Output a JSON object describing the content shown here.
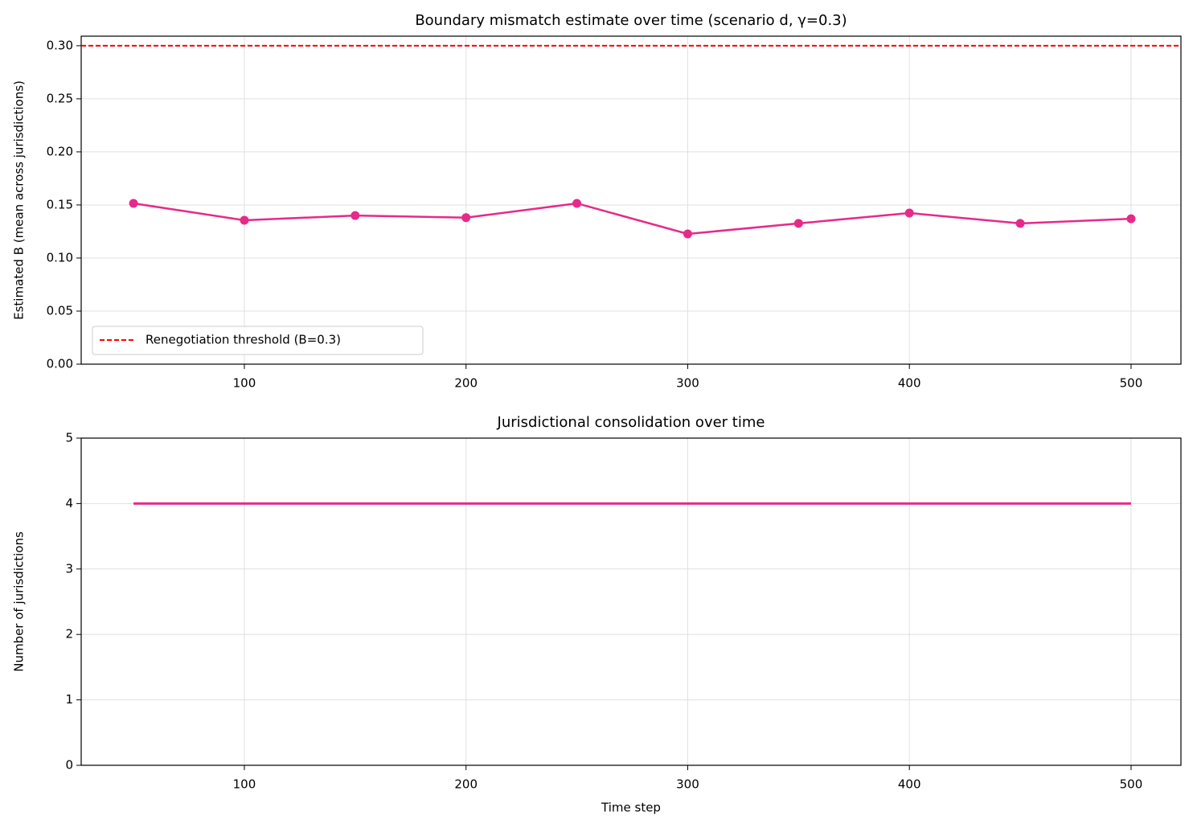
{
  "chart_data": [
    {
      "type": "line",
      "title": "Boundary mismatch estimate over time  (scenario d, γ=0.3)",
      "ylabel": "Estimated B  (mean across jurisdictions)",
      "x": [
        50,
        100,
        150,
        200,
        250,
        300,
        350,
        400,
        450,
        500
      ],
      "series": [
        {
          "color": "#e7298a",
          "marker": true,
          "values": [
            0.1515,
            0.1356,
            0.14,
            0.138,
            0.1515,
            0.1227,
            0.1326,
            0.1424,
            0.1326,
            0.137
          ]
        }
      ],
      "hlines": [
        {
          "value": 0.3,
          "name": "Renegotiation threshold (B=0.3)",
          "color": "#ff0000",
          "dash": true
        }
      ],
      "xlim": [
        26.4,
        522.5
      ],
      "ylim": [
        0,
        0.309
      ],
      "xticks": [
        100,
        200,
        300,
        400,
        500
      ],
      "yticks": [
        {
          "value": 0,
          "label": "0.00"
        },
        {
          "value": 0.05,
          "label": "0.05"
        },
        {
          "value": 0.1,
          "label": "0.10"
        },
        {
          "value": 0.15,
          "label": "0.15"
        },
        {
          "value": 0.2,
          "label": "0.20"
        },
        {
          "value": 0.25,
          "label": "0.25"
        },
        {
          "value": 0.3,
          "label": "0.30"
        }
      ],
      "grid": true,
      "legend": "lower left"
    },
    {
      "type": "line",
      "title": "Jurisdictional consolidation over time",
      "ylabel": "Number of jurisdictions",
      "xlabel": "Time step",
      "x": [
        50,
        100,
        150,
        200,
        250,
        300,
        350,
        400,
        450,
        500
      ],
      "series": [
        {
          "color": "#e7298a",
          "marker": false,
          "values": [
            4,
            4,
            4,
            4,
            4,
            4,
            4,
            4,
            4,
            4
          ]
        }
      ],
      "xlim": [
        26.4,
        522.5
      ],
      "ylim": [
        0,
        5
      ],
      "xticks": [
        100,
        200,
        300,
        400,
        500
      ],
      "yticks": [
        0,
        1,
        2,
        3,
        4,
        5
      ],
      "grid": true
    }
  ]
}
